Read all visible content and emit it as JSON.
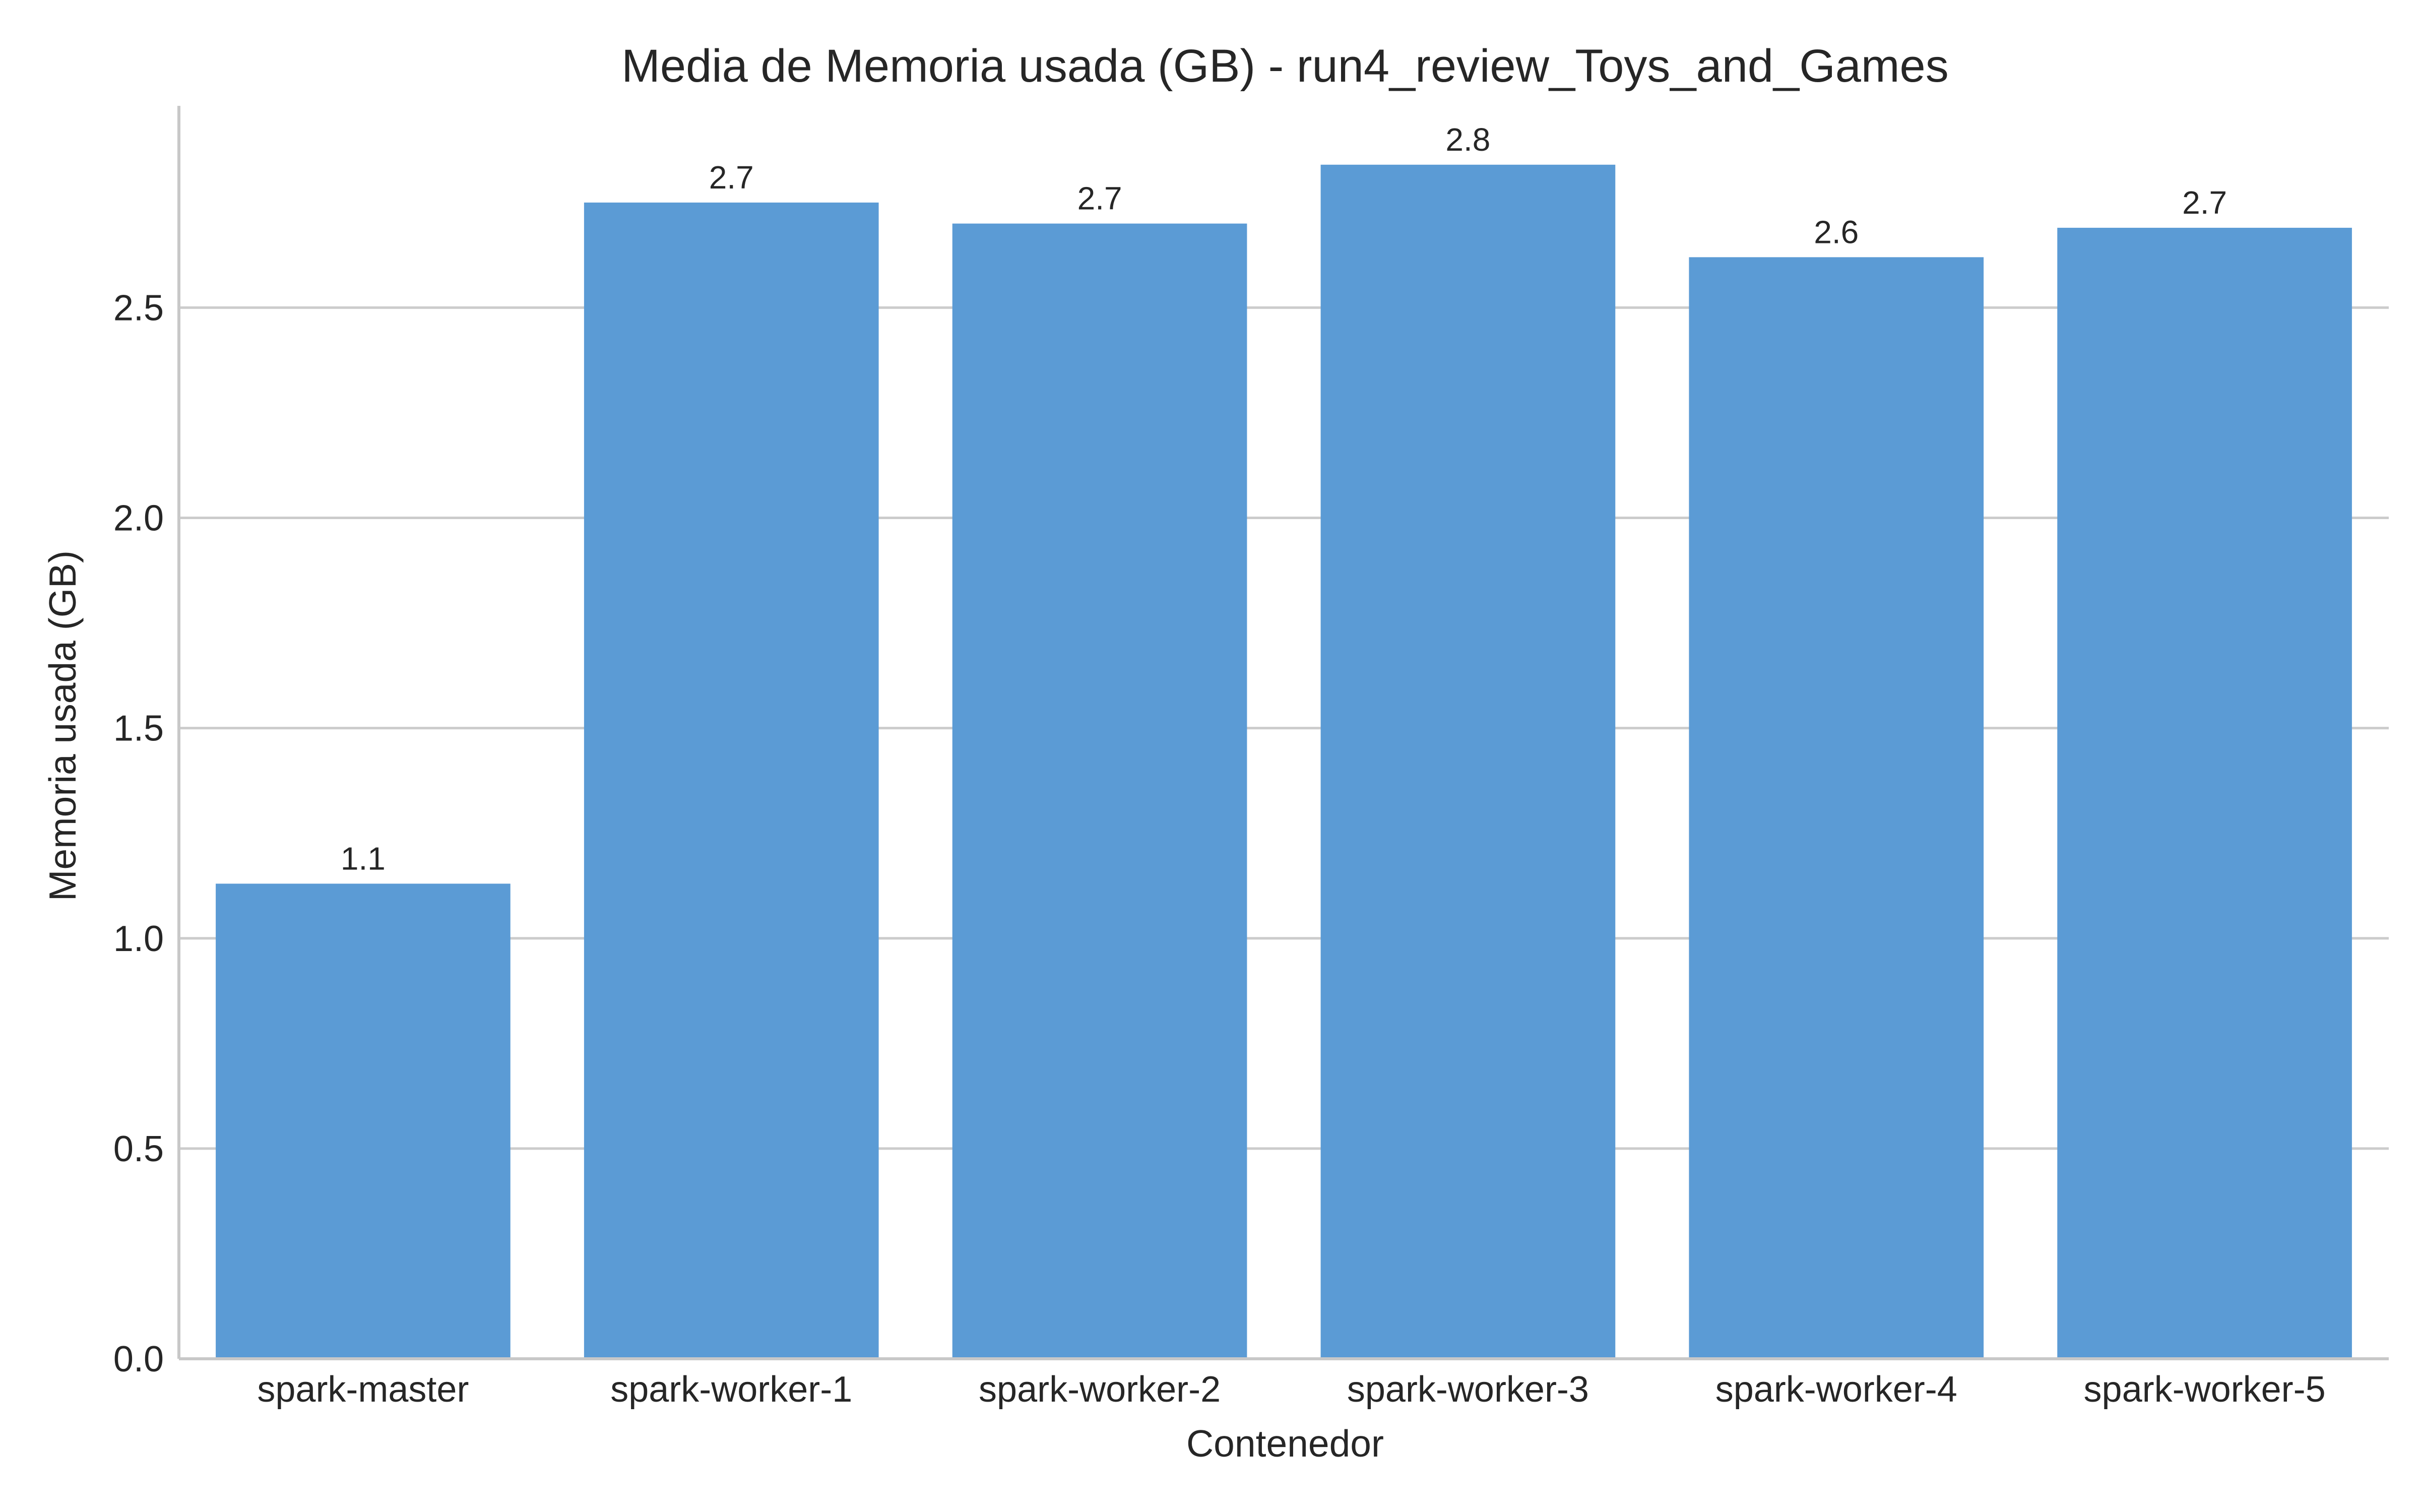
{
  "chart_data": {
    "type": "bar",
    "title": "Media de Memoria usada (GB) - run4_review_Toys_and_Games",
    "xlabel": "Contenedor",
    "ylabel": "Memoria usada (GB)",
    "categories": [
      "spark-master",
      "spark-worker-1",
      "spark-worker-2",
      "spark-worker-3",
      "spark-worker-4",
      "spark-worker-5"
    ],
    "values": [
      1.13,
      2.75,
      2.7,
      2.84,
      2.62,
      2.69
    ],
    "data_labels": [
      "1.1",
      "2.7",
      "2.7",
      "2.8",
      "2.6",
      "2.7"
    ],
    "ylim": [
      0,
      2.98
    ],
    "yticks": [
      0.0,
      0.5,
      1.0,
      1.5,
      2.0,
      2.5
    ],
    "ytick_labels": [
      "0.0",
      "0.5",
      "1.0",
      "1.5",
      "2.0",
      "2.5"
    ],
    "grid": "horizontal",
    "bar_color": "#5b9bd5"
  }
}
